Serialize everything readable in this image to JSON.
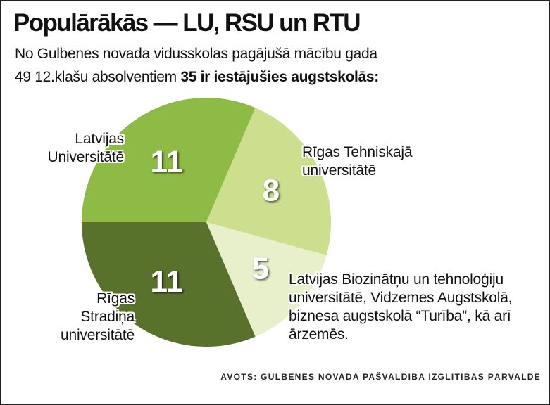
{
  "chart_data": {
    "type": "pie",
    "title": "Populārākās — LU, RSU un RTU",
    "subtitle_line1": "No Gulbenes novada vidusskolas pagājušā mācību gada",
    "subtitle_line2": "49 12.klašu absolventiem",
    "subtitle_emphasis": "35 ir iestājušies augstskolās:",
    "categories": [
      "Latvijas\nUniversitātē",
      "Rīgas Tehniskajā\nuniversitātē",
      "Latvijas Biozinātņu un tehnoloģiju\nuniversitātē, Vidzemes Augstskolā,\nbiznesa augstskolā “Turība”, kā arī\nārzemēs.",
      "Rīgas\nStradiņa\nuniversitātē"
    ],
    "values": [
      11,
      8,
      5,
      11
    ],
    "colors": [
      "#8dbb45",
      "#cbdf8f",
      "#e7f0cb",
      "#58712b"
    ],
    "source": "AVOTS: GULBENES NOVADA PAŠVALDĪBA IZGLĪTĪBAS PĀRVALDE"
  }
}
